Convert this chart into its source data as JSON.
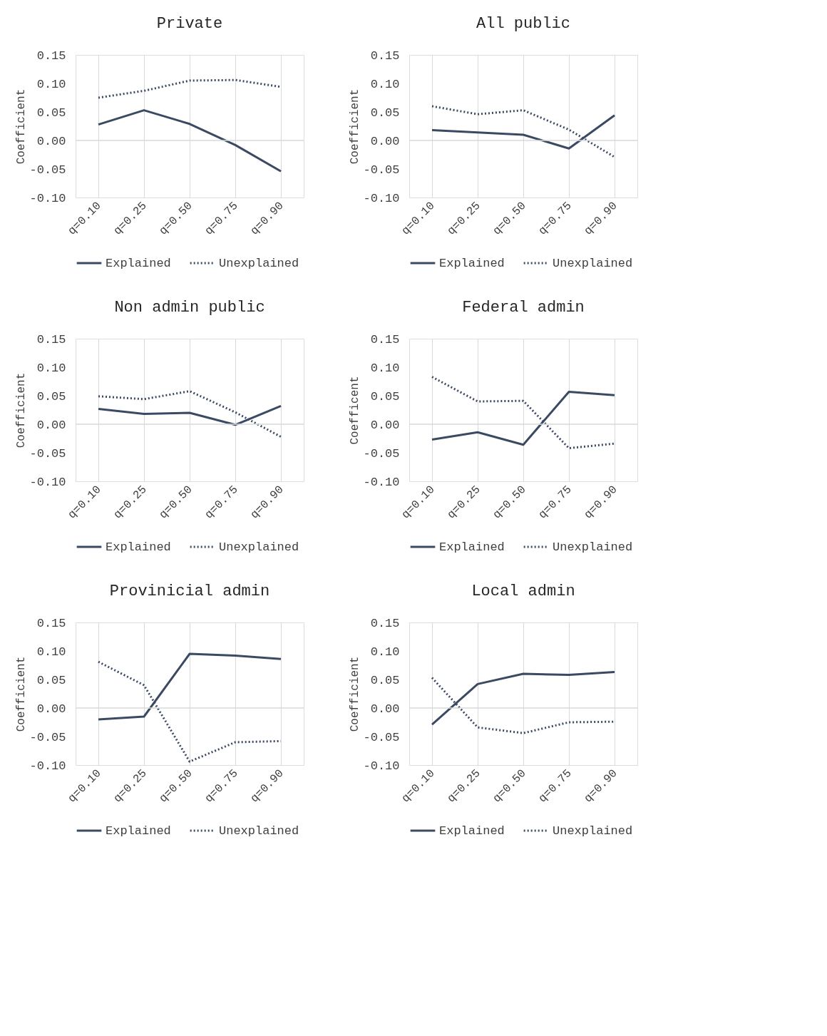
{
  "chart_data": [
    {
      "type": "line",
      "title": "Private",
      "ylabel": "Coefficient",
      "categories": [
        "q=0.10",
        "q=0.25",
        "q=0.50",
        "q=0.75",
        "q=0.90"
      ],
      "ylim": [
        -0.1,
        0.15
      ],
      "yticks": [
        {
          "value": -0.1,
          "label": "-0.10"
        },
        {
          "value": -0.05,
          "label": "-0.05"
        },
        {
          "value": 0,
          "label": "0.00"
        },
        {
          "value": 0.05,
          "label": "0.05"
        },
        {
          "value": 0.1,
          "label": "0.10"
        },
        {
          "value": 0.15,
          "label": "0.15"
        }
      ],
      "grid": "x",
      "legend": "bottom",
      "ref_lines": [
        {
          "axis": "y",
          "value": 0,
          "color": "#d9d9d9"
        }
      ],
      "series": [
        {
          "name": "Explained",
          "color": "#3b4a63",
          "line_style": "solid",
          "values": [
            0.028,
            0.053,
            0.029,
            -0.008,
            -0.054
          ]
        },
        {
          "name": "Unexplained",
          "color": "#3b4a63",
          "line_style": "dotted",
          "values": [
            0.075,
            0.087,
            0.105,
            0.106,
            0.094
          ]
        }
      ]
    },
    {
      "type": "line",
      "title": "All public",
      "ylabel": "Coefficient",
      "categories": [
        "q=0.10",
        "q=0.25",
        "q=0.50",
        "q=0.75",
        "q=0.90"
      ],
      "ylim": [
        -0.1,
        0.15
      ],
      "yticks": [
        {
          "value": -0.1,
          "label": "-0.10"
        },
        {
          "value": -0.05,
          "label": "-0.05"
        },
        {
          "value": 0,
          "label": "0.00"
        },
        {
          "value": 0.05,
          "label": "0.05"
        },
        {
          "value": 0.1,
          "label": "0.10"
        },
        {
          "value": 0.15,
          "label": "0.15"
        }
      ],
      "grid": "x",
      "legend": "bottom",
      "ref_lines": [
        {
          "axis": "y",
          "value": 0,
          "color": "#d9d9d9"
        }
      ],
      "series": [
        {
          "name": "Explained",
          "color": "#3b4a63",
          "line_style": "solid",
          "values": [
            0.018,
            0.014,
            0.01,
            -0.014,
            0.044
          ]
        },
        {
          "name": "Unexplained",
          "color": "#3b4a63",
          "line_style": "dotted",
          "values": [
            0.06,
            0.046,
            0.053,
            0.019,
            -0.029
          ]
        }
      ]
    },
    {
      "type": "line",
      "title": "Non admin public",
      "ylabel": "Coefficient",
      "categories": [
        "q=0.10",
        "q=0.25",
        "q=0.50",
        "q=0.75",
        "q=0.90"
      ],
      "ylim": [
        -0.1,
        0.15
      ],
      "yticks": [
        {
          "value": -0.1,
          "label": "-0.10"
        },
        {
          "value": -0.05,
          "label": "-0.05"
        },
        {
          "value": 0,
          "label": "0.00"
        },
        {
          "value": 0.05,
          "label": "0.05"
        },
        {
          "value": 0.1,
          "label": "0.10"
        },
        {
          "value": 0.15,
          "label": "0.15"
        }
      ],
      "grid": "x",
      "legend": "bottom",
      "ref_lines": [
        {
          "axis": "y",
          "value": 0,
          "color": "#d9d9d9"
        }
      ],
      "series": [
        {
          "name": "Explained",
          "color": "#3b4a63",
          "line_style": "solid",
          "values": [
            0.027,
            0.018,
            0.02,
            -0.001,
            0.032
          ]
        },
        {
          "name": "Unexplained",
          "color": "#3b4a63",
          "line_style": "dotted",
          "values": [
            0.049,
            0.044,
            0.058,
            0.021,
            -0.022
          ]
        }
      ]
    },
    {
      "type": "line",
      "title": "Federal admin",
      "ylabel": "Coefficent",
      "categories": [
        "q=0.10",
        "q=0.25",
        "q=0.50",
        "q=0.75",
        "q=0.90"
      ],
      "ylim": [
        -0.1,
        0.15
      ],
      "yticks": [
        {
          "value": -0.1,
          "label": "-0.10"
        },
        {
          "value": -0.05,
          "label": "-0.05"
        },
        {
          "value": 0,
          "label": "0.00"
        },
        {
          "value": 0.05,
          "label": "0.05"
        },
        {
          "value": 0.1,
          "label": "0.10"
        },
        {
          "value": 0.15,
          "label": "0.15"
        }
      ],
      "grid": "x",
      "legend": "bottom",
      "ref_lines": [
        {
          "axis": "y",
          "value": 0,
          "color": "#d9d9d9"
        }
      ],
      "series": [
        {
          "name": "Explained",
          "color": "#3b4a63",
          "line_style": "solid",
          "values": [
            -0.027,
            -0.014,
            -0.036,
            0.057,
            0.051
          ]
        },
        {
          "name": "Unexplained",
          "color": "#3b4a63",
          "line_style": "dotted",
          "values": [
            0.083,
            0.04,
            0.041,
            -0.042,
            -0.034
          ]
        }
      ]
    },
    {
      "type": "line",
      "title": "Provinicial admin",
      "ylabel": "Coefficient",
      "categories": [
        "q=0.10",
        "q=0.25",
        "q=0.50",
        "q=0.75",
        "q=0.90"
      ],
      "ylim": [
        -0.1,
        0.15
      ],
      "yticks": [
        {
          "value": -0.1,
          "label": "-0.10"
        },
        {
          "value": -0.05,
          "label": "-0.05"
        },
        {
          "value": 0,
          "label": "0.00"
        },
        {
          "value": 0.05,
          "label": "0.05"
        },
        {
          "value": 0.1,
          "label": "0.10"
        },
        {
          "value": 0.15,
          "label": "0.15"
        }
      ],
      "grid": "x",
      "legend": "bottom",
      "ref_lines": [
        {
          "axis": "y",
          "value": 0,
          "color": "#d9d9d9"
        }
      ],
      "series": [
        {
          "name": "Explained",
          "color": "#3b4a63",
          "line_style": "solid",
          "values": [
            -0.02,
            -0.015,
            0.095,
            0.092,
            0.086
          ]
        },
        {
          "name": "Unexplained",
          "color": "#3b4a63",
          "line_style": "dotted",
          "values": [
            0.081,
            0.04,
            -0.094,
            -0.06,
            -0.058
          ]
        }
      ]
    },
    {
      "type": "line",
      "title": "Local admin",
      "ylabel": "Coefficient",
      "categories": [
        "q=0.10",
        "q=0.25",
        "q=0.50",
        "q=0.75",
        "q=0.90"
      ],
      "ylim": [
        -0.1,
        0.15
      ],
      "yticks": [
        {
          "value": -0.1,
          "label": "-0.10"
        },
        {
          "value": -0.05,
          "label": "-0.05"
        },
        {
          "value": 0,
          "label": "0.00"
        },
        {
          "value": 0.05,
          "label": "0.05"
        },
        {
          "value": 0.1,
          "label": "0.10"
        },
        {
          "value": 0.15,
          "label": "0.15"
        }
      ],
      "grid": "x",
      "legend": "bottom",
      "ref_lines": [
        {
          "axis": "y",
          "value": 0,
          "color": "#d9d9d9"
        }
      ],
      "series": [
        {
          "name": "Explained",
          "color": "#3b4a63",
          "line_style": "solid",
          "values": [
            -0.029,
            0.042,
            0.06,
            0.058,
            0.063
          ]
        },
        {
          "name": "Unexplained",
          "color": "#3b4a63",
          "line_style": "dotted",
          "values": [
            0.053,
            -0.034,
            -0.044,
            -0.025,
            -0.024
          ]
        }
      ]
    }
  ]
}
